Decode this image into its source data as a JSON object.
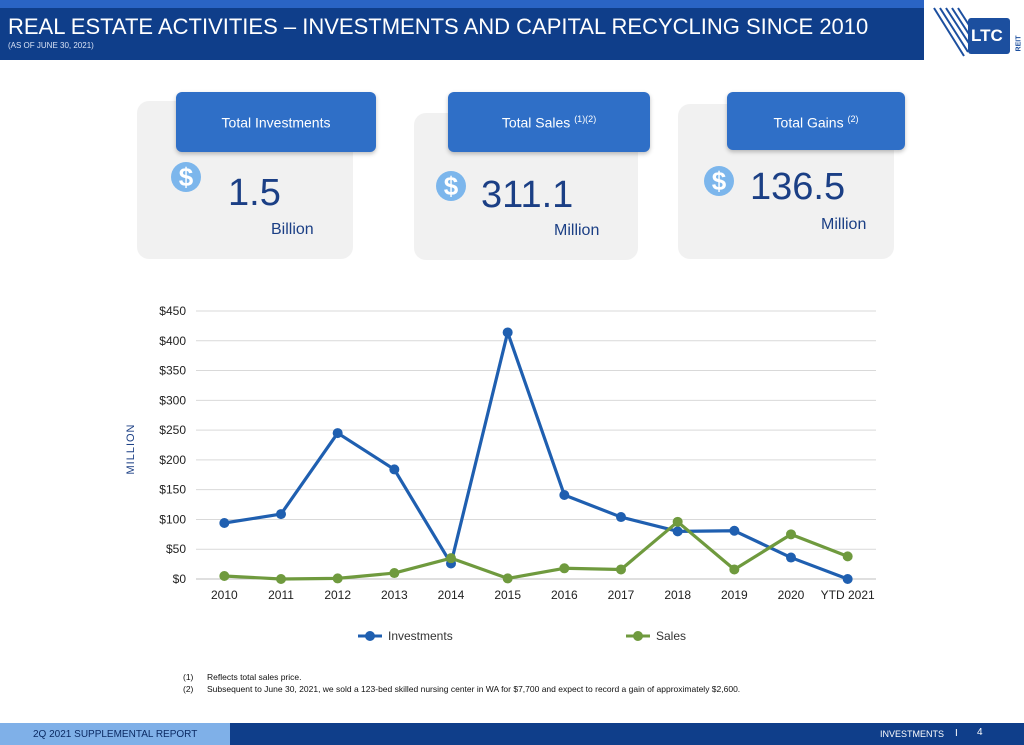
{
  "header": {
    "title": "REAL ESTATE ACTIVITIES – INVESTMENTS AND CAPITAL RECYCLING SINCE 2010",
    "subtitle": "(AS OF JUNE 30, 2021)",
    "logo_text": "LTC",
    "logo_sub": "REIT"
  },
  "cards": [
    {
      "label": "Total Investments",
      "sup": "",
      "currency": "$",
      "value": "1.5",
      "unit": "Billion"
    },
    {
      "label": "Total Sales",
      "sup": "(1)(2)",
      "currency": "$",
      "value": "311.1",
      "unit": "Million"
    },
    {
      "label": "Total Gains",
      "sup": "(2)",
      "currency": "$",
      "value": "136.5",
      "unit": "Million"
    }
  ],
  "chart_data": {
    "type": "line",
    "categories": [
      "2010",
      "2011",
      "2012",
      "2013",
      "2014",
      "2015",
      "2016",
      "2017",
      "2018",
      "2019",
      "2020",
      "YTD 2021"
    ],
    "series": [
      {
        "name": "Investments",
        "color": "#1f5fb0",
        "values": [
          94,
          109,
          245,
          184,
          26,
          414,
          141,
          104,
          80,
          81,
          36,
          0
        ]
      },
      {
        "name": "Sales",
        "color": "#6f9a3e",
        "values": [
          5,
          0,
          1,
          10,
          35,
          1,
          18,
          16,
          96,
          16,
          75,
          38
        ]
      }
    ],
    "ylabel": "MILLION",
    "ylim": [
      0,
      450
    ],
    "yticks": [
      "$0",
      "$50",
      "$100",
      "$150",
      "$200",
      "$250",
      "$300",
      "$350",
      "$400",
      "$450"
    ],
    "grid": true,
    "legend": "bottom"
  },
  "footnotes": [
    {
      "num": "(1)",
      "text": "Reflects total sales price."
    },
    {
      "num": "(2)",
      "text": "Subsequent to June 30, 2021, we sold a 123-bed skilled nursing center in WA for $7,700 and expect to record a gain of approximately $2,600."
    }
  ],
  "footer": {
    "left": "2Q 2021 SUPPLEMENTAL REPORT",
    "right": "INVESTMENTS",
    "separator": "I",
    "page": "4"
  }
}
